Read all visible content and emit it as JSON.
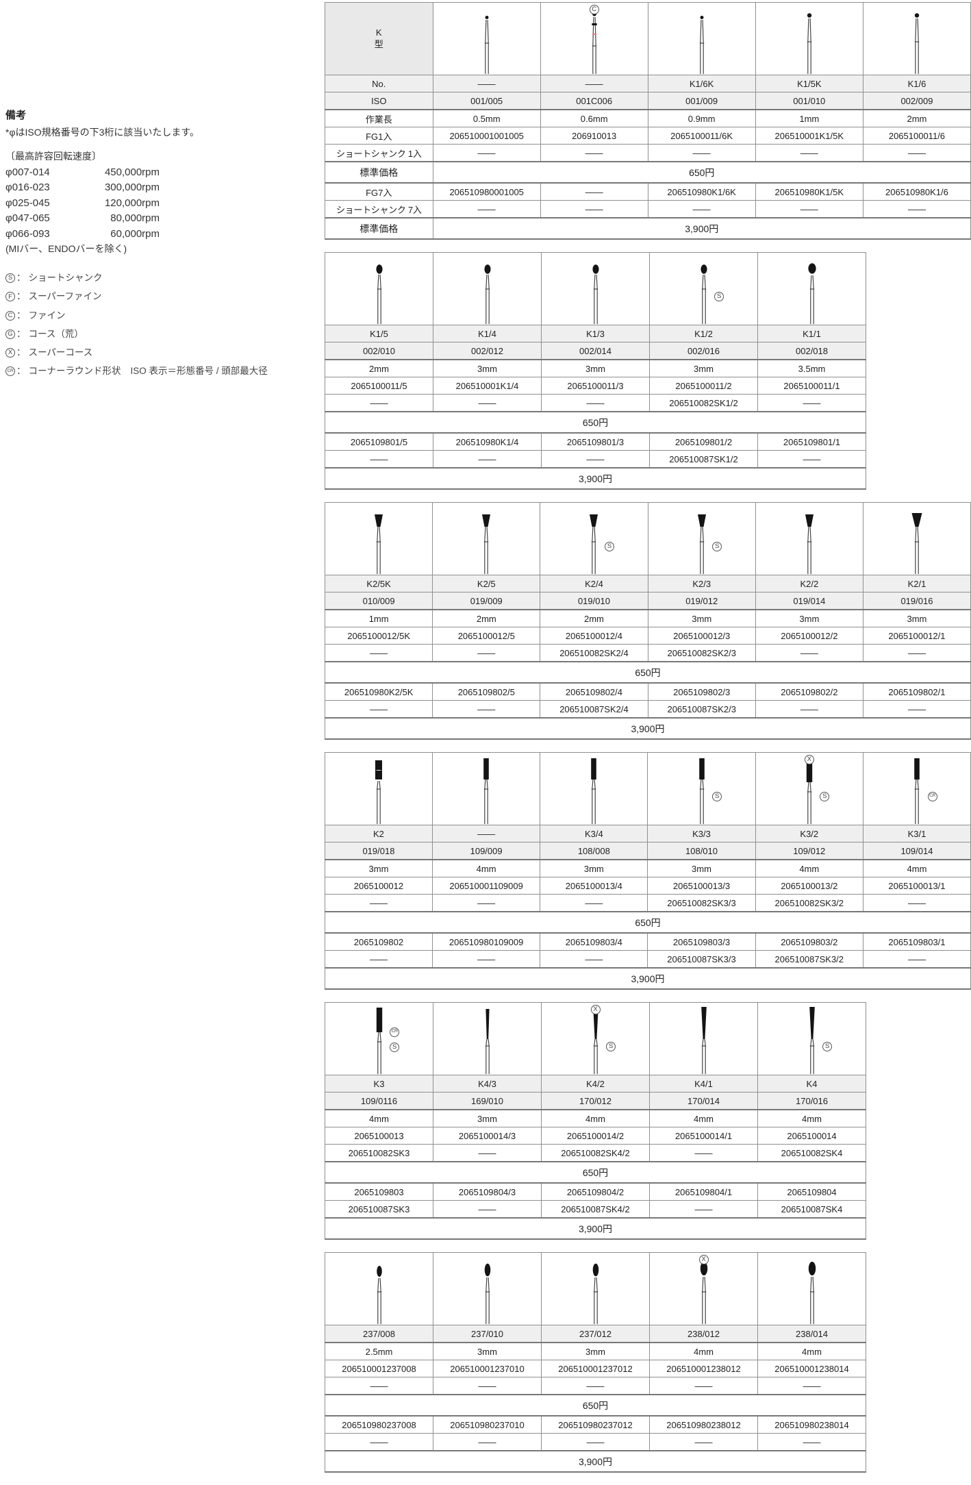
{
  "colors": {
    "link_blue": "#3a6cc0",
    "gray_header": "#efefef",
    "border": "#8f8f8f",
    "red_band": "#e08080",
    "head_black": "#141414"
  },
  "notes": {
    "title": "備考",
    "iso_note": "*φはISO規格番号の下3桁に該当いたします。",
    "speed_title": "〔最高許容回転速度〕",
    "speeds": [
      {
        "range": "φ007-014",
        "rpm": "450,000rpm"
      },
      {
        "range": "φ016-023",
        "rpm": "300,000rpm"
      },
      {
        "range": "φ025-045",
        "rpm": "120,000rpm"
      },
      {
        "range": "φ047-065",
        "rpm": "80,000rpm"
      },
      {
        "range": "φ066-093",
        "rpm": "60,000rpm"
      }
    ],
    "speed_note": "(MIバー、ENDOバーを除く)",
    "colon": "："
  },
  "legend": [
    {
      "sym": "S",
      "text": "ショートシャンク"
    },
    {
      "sym": "F",
      "text": "スーパーファイン"
    },
    {
      "sym": "C",
      "text": "ファイン"
    },
    {
      "sym": "G",
      "text": "コース（荒）"
    },
    {
      "sym": "X",
      "text": "スーパーコース"
    },
    {
      "sym": "CR",
      "text": "コーナーラウンド形状",
      "extra": "ISO 表示＝形態番号 / 頭部最大径"
    }
  ],
  "k_header": {
    "line1": "K",
    "line2": "型"
  },
  "row_labels": {
    "no": "No.",
    "iso": "ISO",
    "len": "作業長",
    "fg1": "FG1入",
    "ss1": "ショートシャンク 1入",
    "price": "標準価格",
    "fg7": "FG7入",
    "ss7": "ショートシャンク 7入"
  },
  "tables": [
    {
      "has_labels": true,
      "no_row": true,
      "price1": "650円",
      "price7": "3,900円",
      "columns": [
        {
          "no": "——",
          "iso": "001/005",
          "len": "0.5mm",
          "fg1": "206510001001005",
          "ss1": "——",
          "fg7": "206510980001005",
          "ss7": "——",
          "head": "t1",
          "marks": []
        },
        {
          "no": "——",
          "iso": "001C006",
          "len": "0.6mm",
          "fg1": "206910013",
          "ss1": "——",
          "fg7": "——",
          "ss7": "——",
          "head": "t1c",
          "marks": [
            {
              "sym": "C",
              "pos": "top"
            }
          ]
        },
        {
          "no": "K1/6K",
          "iso": "001/009",
          "len": "0.9mm",
          "fg1": "2065100011/6K",
          "ss1": "——",
          "fg7": "206510980K1/6K",
          "ss7": "——",
          "head": "t1",
          "marks": []
        },
        {
          "no": "K1/5K",
          "iso": "001/010",
          "len": "1mm",
          "fg1": "206510001K1/5K",
          "ss1": "——",
          "fg7": "206510980K1/5K",
          "ss7": "——",
          "head": "t1b",
          "marks": []
        },
        {
          "no": "K1/6",
          "iso": "002/009",
          "len": "2mm",
          "fg1": "2065100011/6",
          "ss1": "——",
          "fg7": "206510980K1/6",
          "ss7": "——",
          "head": "t1b",
          "marks": []
        }
      ]
    },
    {
      "has_labels": false,
      "no_row": true,
      "price1": "650円",
      "price7": "3,900円",
      "columns": [
        {
          "no": "K1/5",
          "iso": "002/010",
          "len": "2mm",
          "fg1": "2065100011/5",
          "ss1": "——",
          "fg7": "2065109801/5",
          "ss7": "——",
          "head": "round",
          "marks": []
        },
        {
          "no": "K1/4",
          "iso": "002/012",
          "len": "3mm",
          "fg1": "206510001K1/4",
          "ss1": "——",
          "fg7": "206510980K1/4",
          "ss7": "——",
          "head": "round",
          "marks": []
        },
        {
          "no": "K1/3",
          "iso": "002/014",
          "len": "3mm",
          "fg1": "2065100011/3",
          "ss1": "——",
          "fg7": "2065109801/3",
          "ss7": "——",
          "head": "round",
          "marks": []
        },
        {
          "no": "K1/2",
          "iso": "002/016",
          "len": "3mm",
          "fg1": "2065100011/2",
          "ss1": "206510082SK1/2",
          "fg7": "2065109801/2",
          "ss7": "206510087SK1/2",
          "head": "round",
          "marks": [
            {
              "sym": "S",
              "pos": "right"
            }
          ]
        },
        {
          "no": "K1/1",
          "iso": "002/018",
          "len": "3.5mm",
          "fg1": "2065100011/1",
          "ss1": "——",
          "fg7": "2065109801/1",
          "ss7": "——",
          "head": "roundL",
          "marks": []
        }
      ]
    },
    {
      "has_labels": false,
      "no_row": true,
      "price1": "650円",
      "price7": "3,900円",
      "columns": [
        {
          "no": "K2/5K",
          "iso": "010/009",
          "len": "1mm",
          "fg1": "2065100012/5K",
          "ss1": "——",
          "fg7": "206510980K2/5K",
          "ss7": "——",
          "head": "inv",
          "marks": []
        },
        {
          "no": "K2/5",
          "iso": "019/009",
          "len": "2mm",
          "fg1": "2065100012/5",
          "ss1": "——",
          "fg7": "2065109802/5",
          "ss7": "——",
          "head": "inv",
          "marks": []
        },
        {
          "no": "K2/4",
          "iso": "019/010",
          "len": "2mm",
          "fg1": "2065100012/4",
          "ss1": "206510082SK2/4",
          "fg7": "2065109802/4",
          "ss7": "206510087SK2/4",
          "head": "inv",
          "marks": [
            {
              "sym": "S",
              "pos": "right"
            }
          ]
        },
        {
          "no": "K2/3",
          "iso": "019/012",
          "len": "3mm",
          "fg1": "2065100012/3",
          "ss1": "206510082SK2/3",
          "fg7": "2065109802/3",
          "ss7": "206510087SK2/3",
          "head": "inv",
          "marks": [
            {
              "sym": "S",
              "pos": "right"
            }
          ]
        },
        {
          "no": "K2/2",
          "iso": "019/014",
          "len": "3mm",
          "fg1": "2065100012/2",
          "ss1": "——",
          "fg7": "2065109802/2",
          "ss7": "——",
          "head": "inv",
          "marks": []
        },
        {
          "no": "K2/1",
          "iso": "019/016",
          "len": "3mm",
          "fg1": "2065100012/1",
          "ss1": "——",
          "fg7": "2065109802/1",
          "ss7": "——",
          "head": "invL",
          "marks": []
        }
      ]
    },
    {
      "has_labels": false,
      "no_row": true,
      "price1": "650円",
      "price7": "3,900円",
      "columns": [
        {
          "no": "K2",
          "iso": "019/018",
          "len": "3mm",
          "fg1": "2065100012",
          "ss1": "——",
          "fg7": "2065109802",
          "ss7": "——",
          "head": "fisw",
          "marks": []
        },
        {
          "no": "——",
          "iso": "109/009",
          "len": "4mm",
          "fg1": "206510001109009",
          "ss1": "——",
          "fg7": "206510980109009",
          "ss7": "——",
          "head": "fis",
          "marks": []
        },
        {
          "no": "K3/4",
          "iso": "108/008",
          "len": "3mm",
          "fg1": "2065100013/4",
          "ss1": "——",
          "fg7": "2065109803/4",
          "ss7": "——",
          "head": "fis",
          "marks": []
        },
        {
          "no": "K3/3",
          "iso": "108/010",
          "len": "3mm",
          "fg1": "2065100013/3",
          "ss1": "206510082SK3/3",
          "fg7": "2065109803/3",
          "ss7": "206510087SK3/3",
          "head": "fis",
          "marks": [
            {
              "sym": "S",
              "pos": "right"
            }
          ]
        },
        {
          "no": "K3/2",
          "iso": "109/012",
          "len": "4mm",
          "fg1": "2065100013/2",
          "ss1": "206510082SK3/2",
          "fg7": "2065109803/2",
          "ss7": "206510087SK3/2",
          "head": "fisL",
          "marks": [
            {
              "sym": "X",
              "pos": "top"
            },
            {
              "sym": "S",
              "pos": "right"
            }
          ]
        },
        {
          "no": "K3/1",
          "iso": "109/014",
          "len": "4mm",
          "fg1": "2065100013/1",
          "ss1": "——",
          "fg7": "2065109803/1",
          "ss7": "——",
          "head": "fis",
          "marks": [
            {
              "sym": "CR",
              "pos": "right"
            }
          ]
        }
      ]
    },
    {
      "has_labels": false,
      "no_row": true,
      "price1": "650円",
      "price7": "3,900円",
      "columns": [
        {
          "no": "K3",
          "iso": "109/0116",
          "len": "4mm",
          "fg1": "2065100013",
          "ss1": "206510082SK3",
          "fg7": "2065109803",
          "ss7": "206510087SK3",
          "head": "fisL",
          "marks": [
            {
              "sym": "CR",
              "pos": "right"
            },
            {
              "sym": "S",
              "pos": "right"
            }
          ]
        },
        {
          "no": "K4/3",
          "iso": "169/010",
          "len": "3mm",
          "fg1": "2065100014/3",
          "ss1": "——",
          "fg7": "2065109804/3",
          "ss7": "——",
          "head": "taperS",
          "marks": []
        },
        {
          "no": "K4/2",
          "iso": "170/012",
          "len": "4mm",
          "fg1": "2065100014/2",
          "ss1": "206510082SK4/2",
          "fg7": "2065109804/2",
          "ss7": "206510087SK4/2",
          "head": "taper",
          "marks": [
            {
              "sym": "X",
              "pos": "top"
            },
            {
              "sym": "S",
              "pos": "right"
            }
          ]
        },
        {
          "no": "K4/1",
          "iso": "170/014",
          "len": "4mm",
          "fg1": "2065100014/1",
          "ss1": "——",
          "fg7": "2065109804/1",
          "ss7": "——",
          "head": "taper",
          "marks": []
        },
        {
          "no": "K4",
          "iso": "170/016",
          "len": "4mm",
          "fg1": "2065100014",
          "ss1": "206510082SK4",
          "fg7": "2065109804",
          "ss7": "206510087SK4",
          "head": "taper",
          "marks": [
            {
              "sym": "S",
              "pos": "right"
            }
          ]
        }
      ]
    },
    {
      "has_labels": false,
      "no_row": false,
      "price1": "650円",
      "price7": "3,900円",
      "columns": [
        {
          "iso": "237/008",
          "len": "2.5mm",
          "fg1": "206510001237008",
          "ss1": "——",
          "fg7": "206510980237008",
          "ss7": "——",
          "head": "pearS",
          "marks": []
        },
        {
          "iso": "237/010",
          "len": "3mm",
          "fg1": "206510001237010",
          "ss1": "——",
          "fg7": "206510980237010",
          "ss7": "——",
          "head": "pear",
          "marks": []
        },
        {
          "iso": "237/012",
          "len": "3mm",
          "fg1": "206510001237012",
          "ss1": "——",
          "fg7": "206510980237012",
          "ss7": "——",
          "head": "pear",
          "marks": []
        },
        {
          "iso": "238/012",
          "len": "4mm",
          "fg1": "206510001238012",
          "ss1": "——",
          "fg7": "206510980238012",
          "ss7": "——",
          "head": "pearL",
          "marks": [
            {
              "sym": "X",
              "pos": "top"
            }
          ]
        },
        {
          "iso": "238/014",
          "len": "4mm",
          "fg1": "206510001238014",
          "ss1": "——",
          "fg7": "206510980238014",
          "ss7": "——",
          "head": "pearL",
          "marks": []
        }
      ]
    }
  ]
}
